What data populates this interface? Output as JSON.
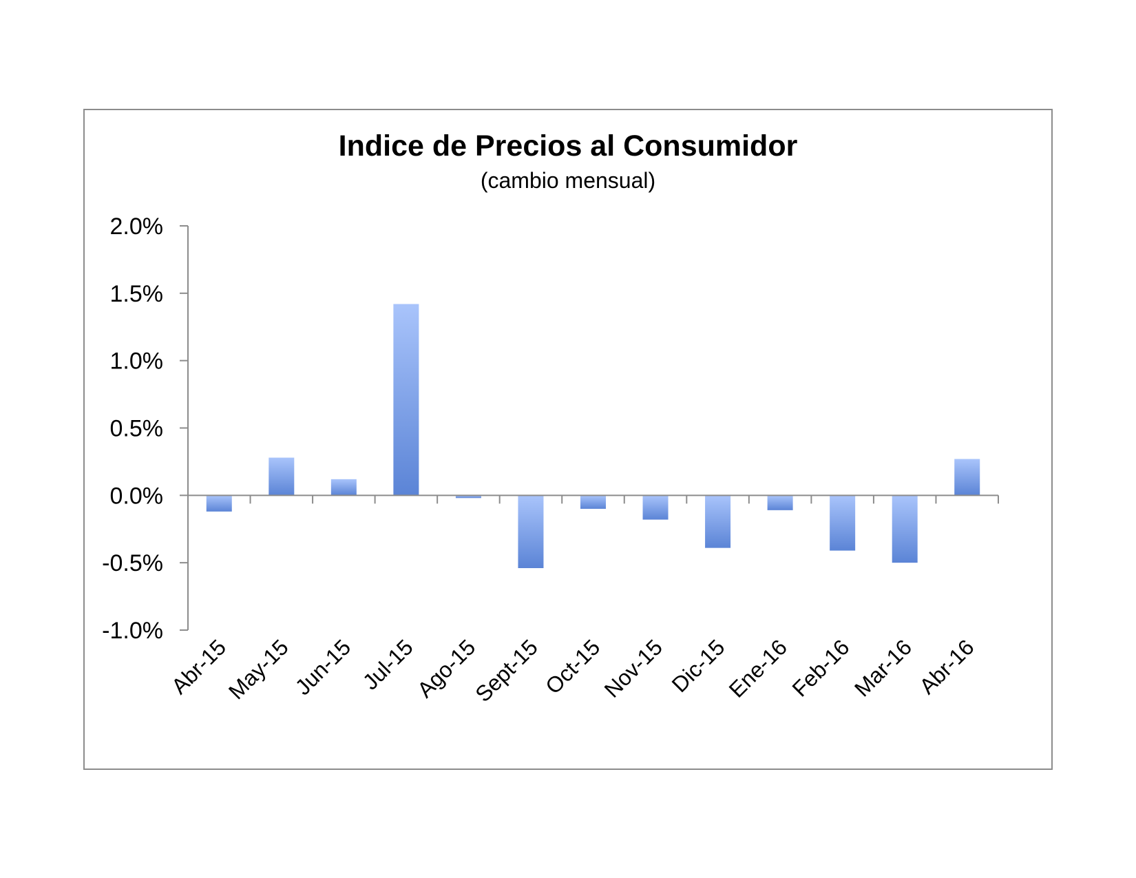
{
  "chart_data": {
    "type": "bar",
    "title": "Indice de Precios al Consumidor",
    "subtitle": "(cambio mensual)",
    "categories": [
      "Abr-15",
      "May-15",
      "Jun-15",
      "Jul-15",
      "Ago-15",
      "Sept-15",
      "Oct-15",
      "Nov-15",
      "Dic-15",
      "Ene-16",
      "Feb-16",
      "Mar-16",
      "Abr-16"
    ],
    "values": [
      -0.12,
      0.28,
      0.12,
      1.42,
      -0.02,
      -0.54,
      -0.1,
      -0.18,
      -0.39,
      -0.11,
      -0.41,
      -0.5,
      0.27
    ],
    "ylim": [
      -1.0,
      2.0
    ],
    "yticks": [
      2.0,
      1.5,
      1.0,
      0.5,
      0.0,
      -0.5,
      -1.0
    ],
    "ytick_labels": [
      "2.0%",
      "1.5%",
      "1.0%",
      "0.5%",
      "0.0%",
      "-0.5%",
      "-1.0%"
    ],
    "xlabel": "",
    "ylabel": "",
    "grid": false,
    "legend": "none",
    "colors": {
      "bar_light": "#a9c4fb",
      "bar_dark": "#5b84d6",
      "axis": "#8c8c8c"
    }
  }
}
